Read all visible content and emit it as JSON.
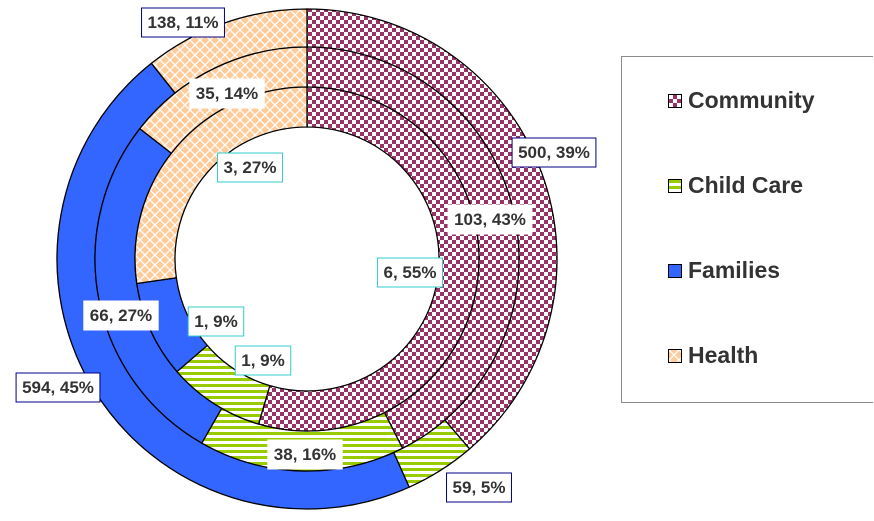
{
  "chart_data": {
    "type": "pie",
    "variant": "multi-ring donut",
    "categories": [
      "Community",
      "Child Care",
      "Families",
      "Health"
    ],
    "colors": {
      "Community": "#993366",
      "Child Care": "#99CC00",
      "Families": "#3366FF",
      "Health": "#FFCC99"
    },
    "rings": [
      {
        "ring": "outer",
        "values": [
          500,
          59,
          594,
          138
        ],
        "percents": [
          39,
          5,
          45,
          11
        ],
        "labels": [
          "500, 39%",
          "59, 5%",
          "594, 45%",
          "138, 11%"
        ],
        "label_border": "#000080"
      },
      {
        "ring": "middle",
        "values": [
          103,
          38,
          66,
          35
        ],
        "percents": [
          43,
          16,
          27,
          14
        ],
        "labels": [
          "103, 43%",
          "38, 16%",
          "66, 27%",
          "35, 14%"
        ],
        "label_border": "#FFFFFF"
      },
      {
        "ring": "inner",
        "values": [
          6,
          1,
          1,
          3
        ],
        "percents": [
          55,
          9,
          9,
          27
        ],
        "labels": [
          "6, 55%",
          "1, 9%",
          "1, 9%",
          "3, 27%"
        ],
        "label_border": "#33CCCC"
      }
    ],
    "legend": {
      "position": "right",
      "entries": [
        "Community",
        "Child Care",
        "Families",
        "Health"
      ]
    }
  }
}
